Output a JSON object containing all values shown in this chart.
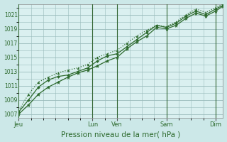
{
  "title": "Pression niveau de la mer( hPa )",
  "bg_color": "#cce8e8",
  "plot_bg_color": "#daf0f0",
  "grid_color": "#99bbbb",
  "line_color": "#2d6a2d",
  "vline_color": "#336633",
  "ylim": [
    1006.5,
    1022.5
  ],
  "yticks": [
    1007,
    1009,
    1011,
    1013,
    1015,
    1017,
    1019,
    1021
  ],
  "x_day_labels": [
    "Jeu",
    "Lun",
    "Ven",
    "Sam",
    "Dim"
  ],
  "x_day_positions": [
    0.0,
    3.0,
    4.0,
    6.0,
    8.0
  ],
  "xlim": [
    0,
    8.3
  ],
  "line1_x": [
    0.0,
    0.4,
    0.8,
    1.2,
    1.6,
    2.0,
    2.4,
    2.8,
    3.2,
    3.6,
    4.0,
    4.4,
    4.8,
    5.2,
    5.6,
    6.0,
    6.4,
    6.8,
    7.2,
    7.6,
    8.0,
    8.3
  ],
  "line1_y": [
    1007.0,
    1008.3,
    1009.8,
    1010.8,
    1011.5,
    1012.2,
    1012.8,
    1013.2,
    1013.8,
    1014.5,
    1015.0,
    1016.2,
    1017.2,
    1018.0,
    1019.2,
    1019.0,
    1019.5,
    1020.5,
    1021.2,
    1020.8,
    1021.5,
    1022.2
  ],
  "line2_x": [
    0.0,
    0.4,
    0.8,
    1.2,
    1.6,
    2.0,
    2.4,
    2.8,
    3.2,
    3.6,
    4.0,
    4.4,
    4.8,
    5.2,
    5.6,
    6.0,
    6.4,
    6.8,
    7.2,
    7.6,
    8.0,
    8.3
  ],
  "line2_y": [
    1007.3,
    1009.0,
    1010.8,
    1011.8,
    1012.3,
    1012.5,
    1013.0,
    1013.5,
    1014.5,
    1015.2,
    1015.5,
    1016.5,
    1017.5,
    1018.5,
    1019.5,
    1019.2,
    1019.8,
    1020.8,
    1021.5,
    1021.0,
    1021.8,
    1022.3
  ],
  "line3_x": [
    0.0,
    0.4,
    0.8,
    1.2,
    1.6,
    2.0,
    2.4,
    2.8,
    3.2,
    3.6,
    4.0,
    4.4,
    4.8,
    5.2,
    5.6,
    6.0,
    6.4,
    6.8,
    7.2,
    7.6,
    8.0,
    8.3
  ],
  "line3_y": [
    1007.5,
    1009.8,
    1011.5,
    1012.2,
    1012.8,
    1013.2,
    1013.5,
    1014.0,
    1015.0,
    1015.5,
    1016.0,
    1017.0,
    1018.0,
    1018.8,
    1019.5,
    1019.3,
    1020.0,
    1021.0,
    1021.8,
    1021.3,
    1022.0,
    1022.5
  ],
  "ylabel_fontsize": 5.5,
  "xlabel_fontsize": 7.5,
  "xtick_fontsize": 6.0
}
